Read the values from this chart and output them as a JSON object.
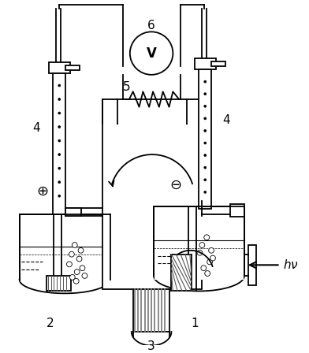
{
  "bg_color": "#ffffff",
  "line_color": "#000000",
  "figsize": [
    3.92,
    4.48
  ],
  "dpi": 100,
  "lw": 1.3
}
